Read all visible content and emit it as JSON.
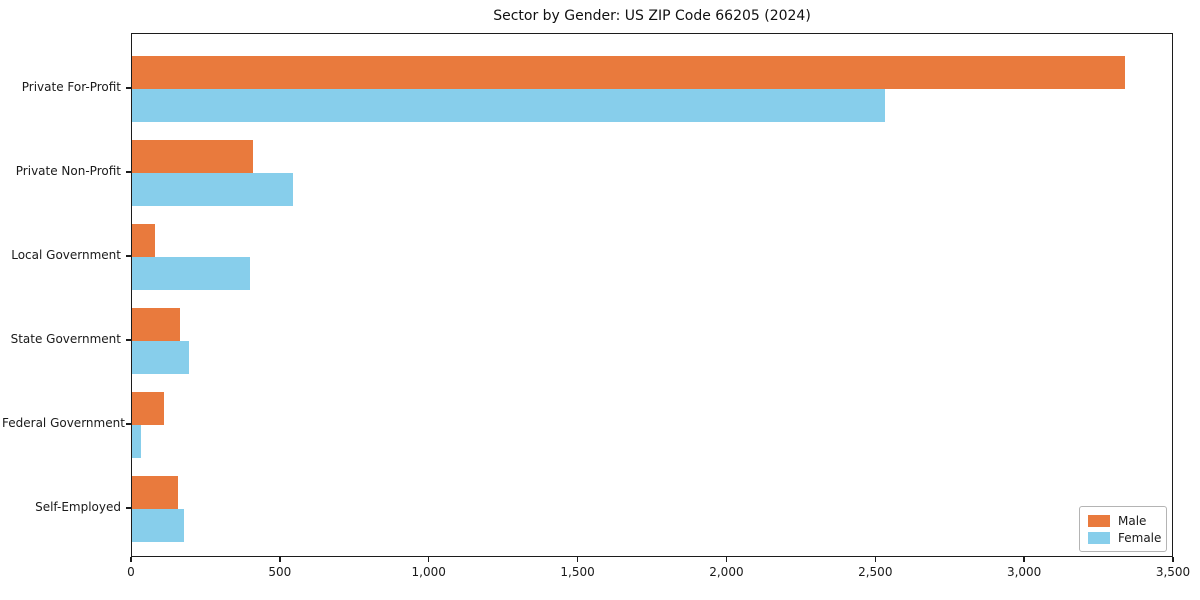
{
  "chart_data": {
    "type": "bar",
    "orientation": "horizontal",
    "title": "Sector by Gender: US ZIP Code 66205 (2024)",
    "categories": [
      "Private For-Profit",
      "Private Non-Profit",
      "Local Government",
      "State Government",
      "Federal Government",
      "Self-Employed"
    ],
    "series": [
      {
        "name": "Male",
        "color": "#E97A3D",
        "values": [
          3335,
          405,
          78,
          160,
          107,
          155
        ]
      },
      {
        "name": "Female",
        "color": "#87CEEB",
        "values": [
          2530,
          540,
          395,
          190,
          30,
          175
        ]
      }
    ],
    "xlabel": "",
    "ylabel": "",
    "xlim": [
      0,
      3500
    ],
    "x_ticks": [
      0,
      500,
      1000,
      1500,
      2000,
      2500,
      3000,
      3500
    ],
    "x_tick_labels": [
      "0",
      "500",
      "1,000",
      "1,500",
      "2,000",
      "2,500",
      "3,000",
      "3,500"
    ],
    "grid": false,
    "legend": {
      "position": "lower right",
      "entries": [
        "Male",
        "Female"
      ]
    }
  }
}
